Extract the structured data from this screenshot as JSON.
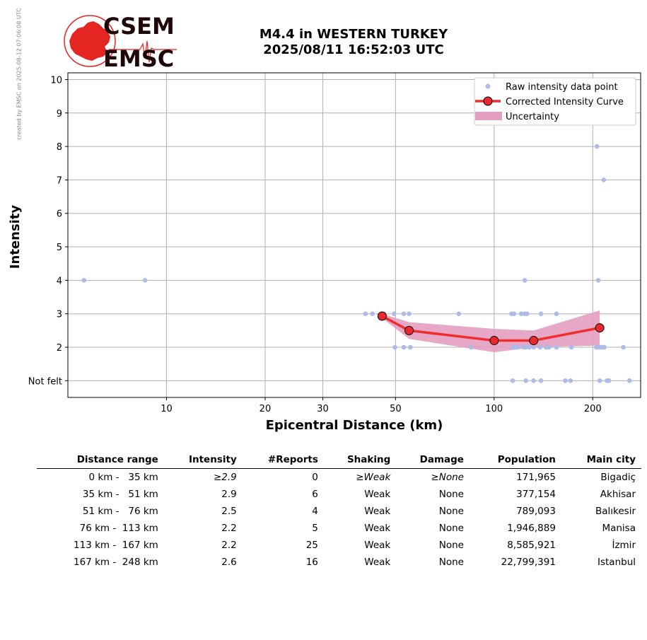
{
  "credit": "created by EMSC on 2025-08-12 07:06:08 UTC",
  "logo": {
    "top": "CSEM",
    "bottom": "EMSC",
    "color": "#e52521"
  },
  "title": {
    "line1": "M4.4 in WESTERN TURKEY",
    "line2": "2025/08/11 16:52:03 UTC"
  },
  "chart_data": {
    "type": "scatter",
    "xlabel": "Epicentral Distance (km)",
    "ylabel": "Intensity",
    "x_scale": "log",
    "xlim": [
      5,
      280
    ],
    "ylim": [
      0.5,
      10.2
    ],
    "x_ticks": [
      10,
      20,
      30,
      50,
      100,
      200
    ],
    "y_ticks": [
      {
        "v": 1,
        "label": "Not felt"
      },
      {
        "v": 2,
        "label": "2"
      },
      {
        "v": 3,
        "label": "3"
      },
      {
        "v": 4,
        "label": "4"
      },
      {
        "v": 5,
        "label": "5"
      },
      {
        "v": 6,
        "label": "6"
      },
      {
        "v": 7,
        "label": "7"
      },
      {
        "v": 8,
        "label": "8"
      },
      {
        "v": 9,
        "label": "9"
      },
      {
        "v": 10,
        "label": "10"
      }
    ],
    "grid": true,
    "legend_position": "top-right",
    "legend": {
      "raw": "Raw intensity data point",
      "curve": "Corrected Intensity Curve",
      "band": "Uncertainty"
    },
    "colors": {
      "raw": "#aebbe8",
      "curve": "#f22b2b",
      "marker": "#e8282d",
      "band": "#e39ec0"
    },
    "raw_points": [
      [
        5.6,
        4
      ],
      [
        8.6,
        4
      ],
      [
        40.5,
        3
      ],
      [
        42.5,
        3
      ],
      [
        46,
        3
      ],
      [
        49.5,
        3
      ],
      [
        53,
        3
      ],
      [
        55,
        3
      ],
      [
        78,
        3
      ],
      [
        49.8,
        2
      ],
      [
        53,
        2
      ],
      [
        55.5,
        2
      ],
      [
        85,
        2
      ],
      [
        113,
        3
      ],
      [
        115,
        3
      ],
      [
        121,
        3
      ],
      [
        124,
        3
      ],
      [
        126,
        3
      ],
      [
        139,
        3
      ],
      [
        155,
        3
      ],
      [
        114,
        2
      ],
      [
        116,
        2
      ],
      [
        118,
        2
      ],
      [
        123,
        2
      ],
      [
        125,
        2
      ],
      [
        128,
        2
      ],
      [
        132,
        2
      ],
      [
        138,
        2
      ],
      [
        144,
        2
      ],
      [
        147,
        2
      ],
      [
        155,
        2
      ],
      [
        172,
        2
      ],
      [
        124,
        4
      ],
      [
        208,
        4
      ],
      [
        205,
        2
      ],
      [
        208,
        2
      ],
      [
        211,
        2
      ],
      [
        214,
        2
      ],
      [
        217,
        2
      ],
      [
        248,
        2
      ],
      [
        206,
        8
      ],
      [
        216,
        7
      ],
      [
        114,
        1
      ],
      [
        125,
        1
      ],
      [
        132,
        1
      ],
      [
        139,
        1
      ],
      [
        165,
        1
      ],
      [
        171,
        1
      ],
      [
        210,
        1
      ],
      [
        221,
        1
      ],
      [
        224,
        1
      ],
      [
        259,
        1
      ]
    ],
    "curve": [
      [
        45.5,
        2.93
      ],
      [
        55,
        2.5
      ],
      [
        100,
        2.2
      ],
      [
        132,
        2.2
      ],
      [
        210,
        2.58
      ]
    ],
    "band_upper": [
      [
        45.5,
        3.0
      ],
      [
        55,
        2.75
      ],
      [
        100,
        2.55
      ],
      [
        132,
        2.5
      ],
      [
        210,
        3.1
      ]
    ],
    "band_lower": [
      [
        45.5,
        2.87
      ],
      [
        55,
        2.25
      ],
      [
        100,
        1.85
      ],
      [
        132,
        2.0
      ],
      [
        210,
        2.05
      ]
    ]
  },
  "table": {
    "headers": [
      "Distance range",
      "Intensity",
      "#Reports",
      "Shaking",
      "Damage",
      "Population",
      "Main city"
    ],
    "rows": [
      {
        "range": "0 km -   35 km",
        "intensity": "≥2.9",
        "reports": "0",
        "shaking": "≥Weak",
        "damage": "≥None",
        "population": "171,965",
        "city": "Bigadiç",
        "italic": true
      },
      {
        "range": "35 km -   51 km",
        "intensity": "2.9",
        "reports": "6",
        "shaking": "Weak",
        "damage": "None",
        "population": "377,154",
        "city": "Akhisar",
        "italic": false
      },
      {
        "range": "51 km -   76 km",
        "intensity": "2.5",
        "reports": "4",
        "shaking": "Weak",
        "damage": "None",
        "population": "789,093",
        "city": "Balıkesir",
        "italic": false
      },
      {
        "range": "76 km -  113 km",
        "intensity": "2.2",
        "reports": "5",
        "shaking": "Weak",
        "damage": "None",
        "population": "1,946,889",
        "city": "Manisa",
        "italic": false
      },
      {
        "range": "113 km -  167 km",
        "intensity": "2.2",
        "reports": "25",
        "shaking": "Weak",
        "damage": "None",
        "population": "8,585,921",
        "city": "İzmir",
        "italic": false
      },
      {
        "range": "167 km -  248 km",
        "intensity": "2.6",
        "reports": "16",
        "shaking": "Weak",
        "damage": "None",
        "population": "22,799,391",
        "city": "Istanbul",
        "italic": false
      }
    ]
  }
}
